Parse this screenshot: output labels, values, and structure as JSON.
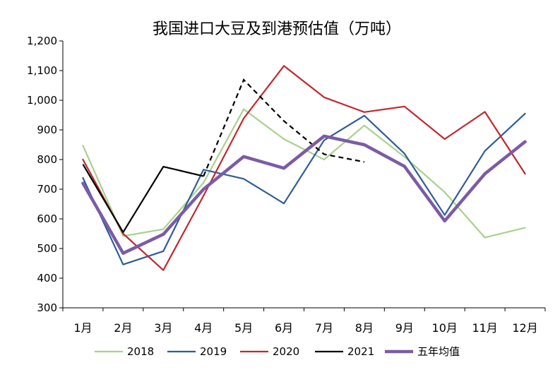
{
  "chart_data": {
    "type": "line",
    "title": "我国进口大豆及到港预估值（万吨）",
    "xlabel": "",
    "ylabel": "",
    "ylim": [
      300,
      1200
    ],
    "yticks": [
      "300",
      "400",
      "500",
      "600",
      "700",
      "800",
      "900",
      "1,000",
      "1,100",
      "1,200"
    ],
    "yticks_values": [
      300,
      400,
      500,
      600,
      700,
      800,
      900,
      1000,
      1100,
      1200
    ],
    "categories": [
      "1月",
      "2月",
      "3月",
      "4月",
      "5月",
      "6月",
      "7月",
      "8月",
      "9月",
      "10月",
      "11月",
      "12月"
    ],
    "grid": false,
    "legend_position": "bottom",
    "series": [
      {
        "name": "2018",
        "color": "#a9d18e",
        "style": "solid",
        "weight": "normal",
        "values": [
          847,
          542,
          565,
          722,
          970,
          869,
          800,
          915,
          809,
          690,
          537,
          570
        ]
      },
      {
        "name": "2019",
        "color": "#2e5c9a",
        "style": "solid",
        "weight": "normal",
        "values": [
          738,
          446,
          491,
          766,
          735,
          652,
          865,
          948,
          820,
          613,
          829,
          955
        ]
      },
      {
        "name": "2020",
        "color": "#c0282e",
        "style": "solid",
        "weight": "normal",
        "values": [
          800,
          550,
          427,
          678,
          939,
          1116,
          1010,
          960,
          979,
          869,
          961,
          752
        ]
      },
      {
        "name": "2021",
        "color": "#000000",
        "style": "mixed",
        "weight": "normal",
        "solid_until_index": 3,
        "values": [
          784,
          555,
          776,
          744,
          1069,
          930,
          818,
          792,
          null,
          null,
          null,
          null
        ]
      },
      {
        "name": "五年均值",
        "color": "#7b5ba6",
        "style": "solid",
        "weight": "bold",
        "values": [
          720,
          484,
          548,
          700,
          810,
          771,
          879,
          850,
          777,
          593,
          752,
          860
        ]
      }
    ]
  }
}
